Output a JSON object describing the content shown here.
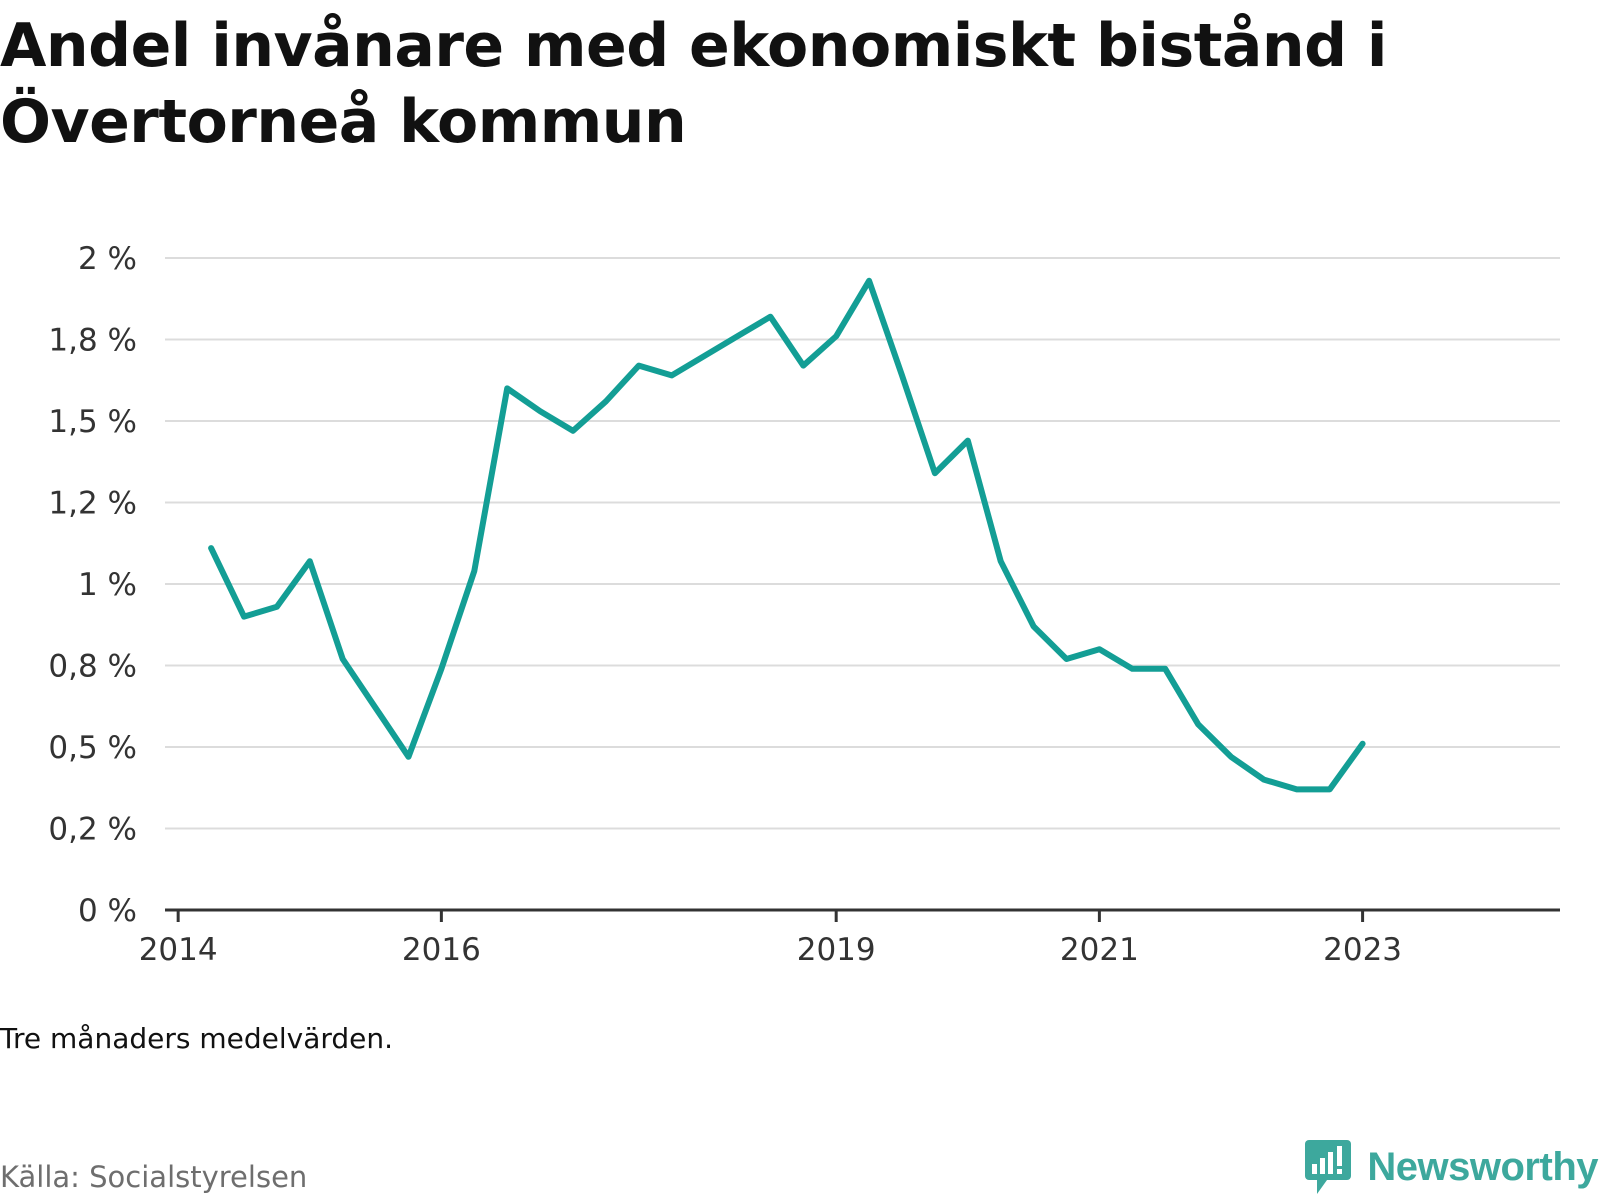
{
  "title": "Andel invånare med ekonomiskt bistånd i Övertorneå kommun",
  "note": "Tre månaders medelvärden.",
  "source": "Källa: Socialstyrelsen",
  "brand": {
    "name": "Newsworthy",
    "color": "#3da89d",
    "icon": "chat-bubble-bar-chart-icon"
  },
  "chart_data": {
    "type": "line",
    "title": "Andel invånare med ekonomiskt bistånd i Övertorneå kommun",
    "xlabel": "",
    "ylabel": "",
    "ylim": [
      0,
      2
    ],
    "grid": true,
    "line_color": "#139e95",
    "y_ticks": [
      {
        "value": 0,
        "label": "0 %"
      },
      {
        "value": 0.25,
        "label": "0,2 %"
      },
      {
        "value": 0.5,
        "label": "0,5 %"
      },
      {
        "value": 0.75,
        "label": "0,8 %"
      },
      {
        "value": 1.0,
        "label": "1 %"
      },
      {
        "value": 1.25,
        "label": "1,2 %"
      },
      {
        "value": 1.5,
        "label": "1,5 %"
      },
      {
        "value": 1.75,
        "label": "1,8 %"
      },
      {
        "value": 2.0,
        "label": "2 %"
      }
    ],
    "x_ticks": [
      {
        "value": 2014.0,
        "label": "2014"
      },
      {
        "value": 2016.0,
        "label": "2016"
      },
      {
        "value": 2019.0,
        "label": "2019"
      },
      {
        "value": 2021.0,
        "label": "2021"
      },
      {
        "value": 2023.0,
        "label": "2023"
      }
    ],
    "xlim": [
      2013.9,
      2024.5
    ],
    "series": [
      {
        "x": [
          2014.25,
          2014.5,
          2014.75,
          2015.0,
          2015.25,
          2015.5,
          2015.75,
          2016.0,
          2016.25,
          2016.5,
          2016.75,
          2017.0,
          2017.25,
          2017.5,
          2017.75,
          2018.0,
          2018.25,
          2018.5,
          2018.75,
          2019.0,
          2019.25,
          2019.5,
          2019.75,
          2020.0,
          2020.25,
          2020.5,
          2020.75,
          2021.0,
          2021.25,
          2021.5,
          2021.75,
          2022.0,
          2022.25,
          2022.5,
          2022.75,
          2023.0
        ],
        "y": [
          1.11,
          0.9,
          0.93,
          1.07,
          0.77,
          0.62,
          0.47,
          0.74,
          1.04,
          1.6,
          1.53,
          1.47,
          1.56,
          1.67,
          1.64,
          1.7,
          1.76,
          1.82,
          1.67,
          1.76,
          1.93,
          1.64,
          1.34,
          1.44,
          1.07,
          0.87,
          0.77,
          0.8,
          0.74,
          0.74,
          0.57,
          0.47,
          0.4,
          0.37,
          0.37,
          0.51
        ]
      }
    ]
  }
}
